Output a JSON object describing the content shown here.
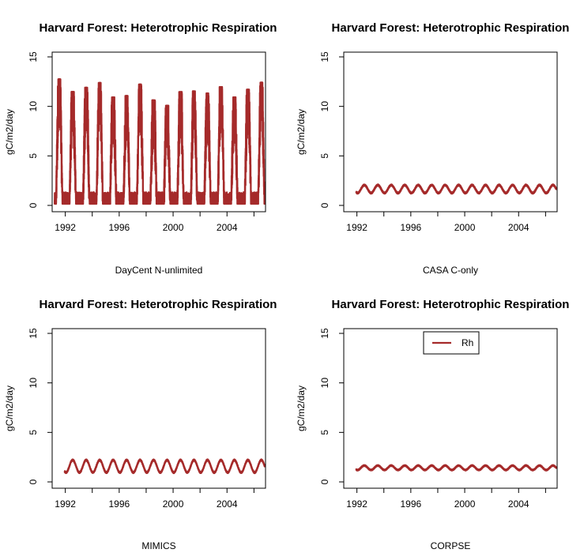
{
  "colors": {
    "series": "#A52A2A",
    "frame": "#000000",
    "background": "#ffffff"
  },
  "chart_data": [
    {
      "type": "line",
      "title": "Harvard Forest: Heterotrophic Respiration",
      "xlabel": "DayCent N-unlimited",
      "ylabel": "gC/m2/day",
      "xlim": [
        1991.2,
        2006.8
      ],
      "ylim": [
        0,
        15
      ],
      "x_ticks": [
        "1992",
        "1996",
        "2000",
        "2004"
      ],
      "y_ticks": [
        "0",
        "5",
        "10",
        "15"
      ],
      "legend": null,
      "series": [
        {
          "mean": 3.6,
          "summer_peak": 10.5,
          "winter_min": 0.3,
          "peak_range": [
            10,
            12.8
          ],
          "daily_noise": 3.5,
          "start": 1991.2,
          "end": 2006.8
        }
      ]
    },
    {
      "type": "line",
      "title": "Harvard Forest: Heterotrophic Respiration",
      "xlabel": "CASA C-only",
      "ylabel": "gC/m2/day",
      "xlim": [
        1991.2,
        2006.8
      ],
      "ylim": [
        0,
        15
      ],
      "x_ticks": [
        "1992",
        "1996",
        "2000",
        "2004"
      ],
      "y_ticks": [
        "0",
        "5",
        "10",
        "15"
      ],
      "legend": null,
      "series": [
        {
          "mean": 1.6,
          "summer_peak": 2.05,
          "winter_min": 1.25,
          "daily_noise": 0.08,
          "start": 1991.95,
          "end": 2006.8
        }
      ]
    },
    {
      "type": "line",
      "title": "Harvard Forest: Heterotrophic Respiration",
      "xlabel": "MIMICS",
      "ylabel": "gC/m2/day",
      "xlim": [
        1991.2,
        2006.8
      ],
      "ylim": [
        0,
        15
      ],
      "x_ticks": [
        "1992",
        "1996",
        "2000",
        "2004"
      ],
      "y_ticks": [
        "0",
        "5",
        "10",
        "15"
      ],
      "legend": null,
      "series": [
        {
          "mean": 1.5,
          "summer_peak": 2.2,
          "winter_min": 0.95,
          "daily_noise": 0.08,
          "start": 1991.95,
          "end": 2006.8
        }
      ]
    },
    {
      "type": "line",
      "title": "Harvard Forest: Heterotrophic Respiration",
      "xlabel": "CORPSE",
      "ylabel": "gC/m2/day",
      "xlim": [
        1991.2,
        2006.8
      ],
      "ylim": [
        0,
        15
      ],
      "x_ticks": [
        "1992",
        "1996",
        "2000",
        "2004"
      ],
      "y_ticks": [
        "0",
        "5",
        "10",
        "15"
      ],
      "legend": {
        "label": "Rh",
        "position": "top-center"
      },
      "series": [
        {
          "name": "Rh",
          "mean": 1.4,
          "summer_peak": 1.65,
          "winter_min": 1.2,
          "daily_noise": 0.06,
          "start": 1991.95,
          "end": 2006.8
        }
      ]
    }
  ]
}
